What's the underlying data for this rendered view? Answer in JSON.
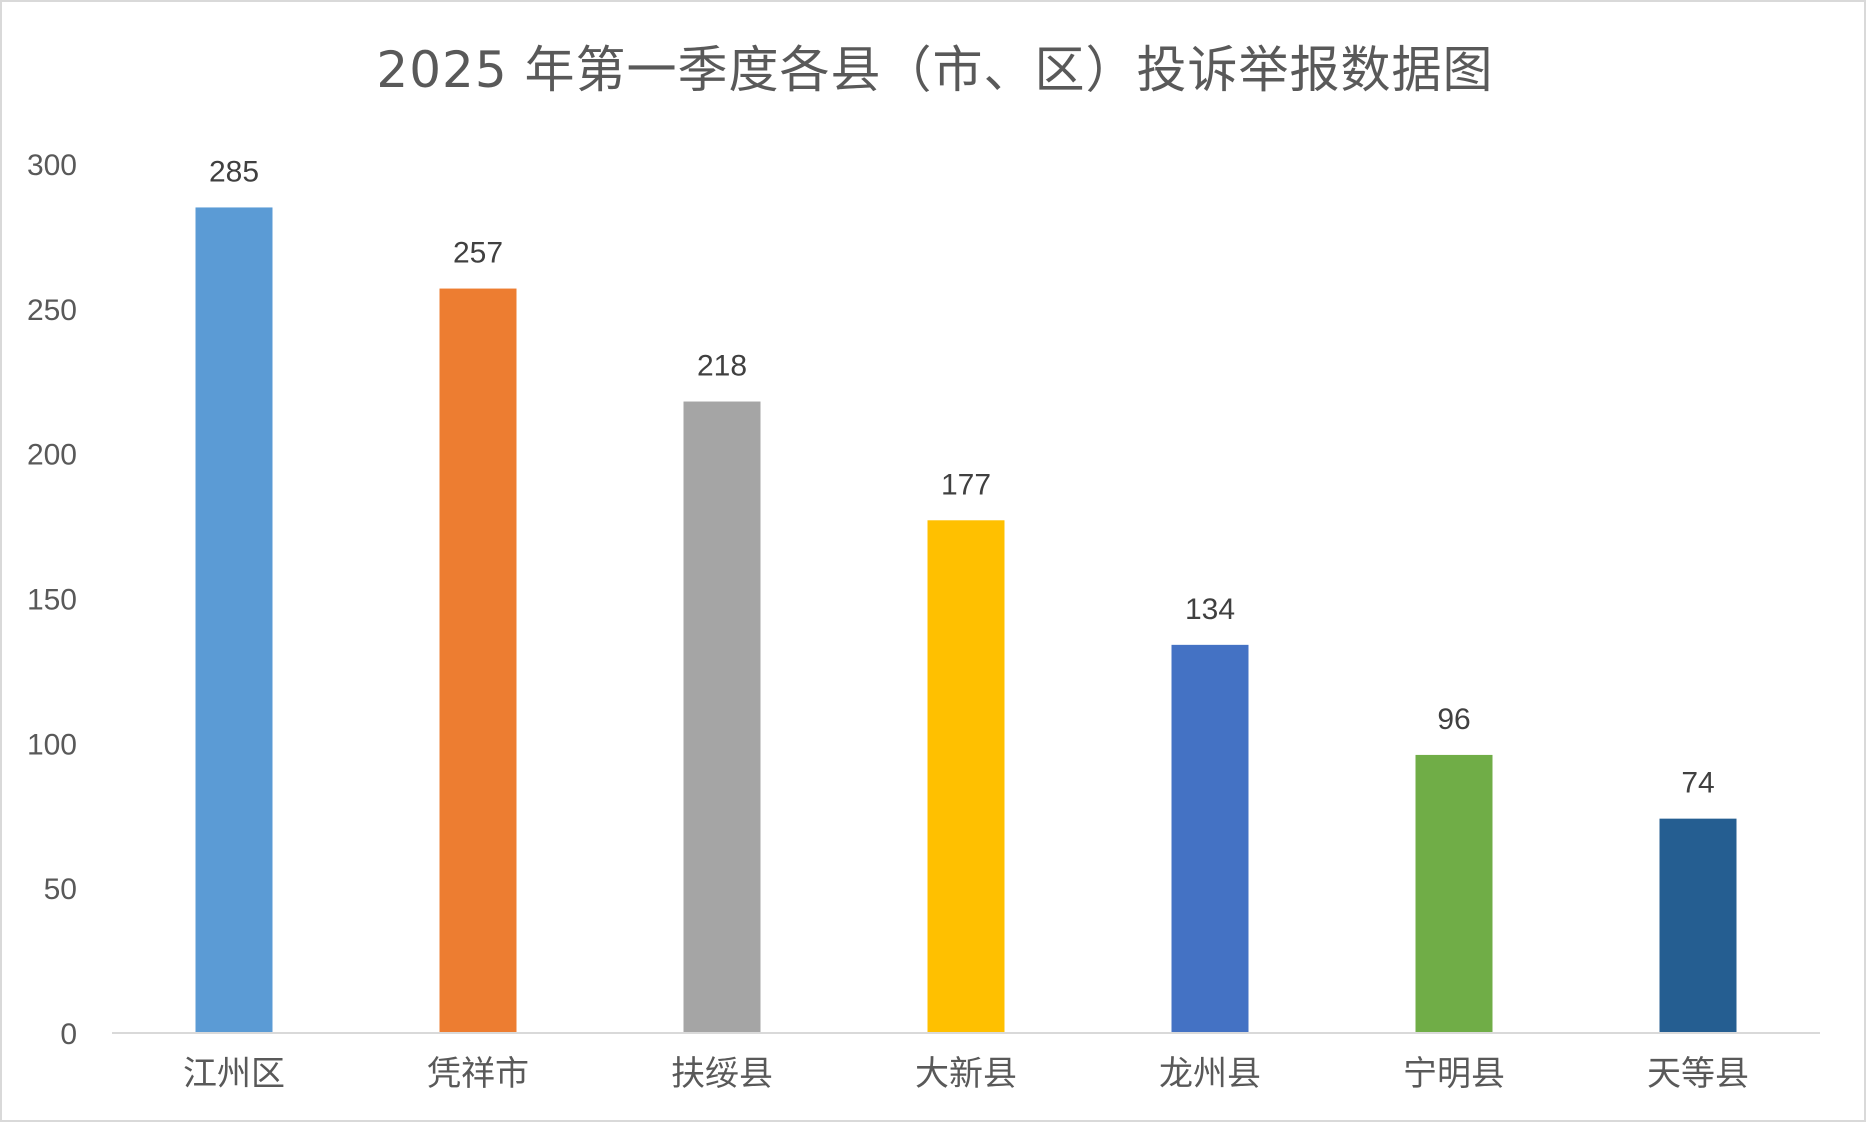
{
  "chart_data": {
    "type": "bar",
    "title": "2025 年第一季度各县（市、区）投诉举报数据图",
    "categories": [
      "江州区",
      "凭祥市",
      "扶绥县",
      "大新县",
      "龙州县",
      "宁明县",
      "天等县"
    ],
    "values": [
      285,
      257,
      218,
      177,
      134,
      96,
      74
    ],
    "colors": [
      "#5b9bd5",
      "#ed7d31",
      "#a5a5a5",
      "#ffc000",
      "#4472c4",
      "#70ad47",
      "#255e91"
    ],
    "ylim": [
      0,
      300
    ],
    "yticks": [
      0,
      50,
      100,
      150,
      200,
      250,
      300
    ],
    "xlabel": "",
    "ylabel": "",
    "grid": false,
    "legend": "none",
    "data_labels": true
  }
}
